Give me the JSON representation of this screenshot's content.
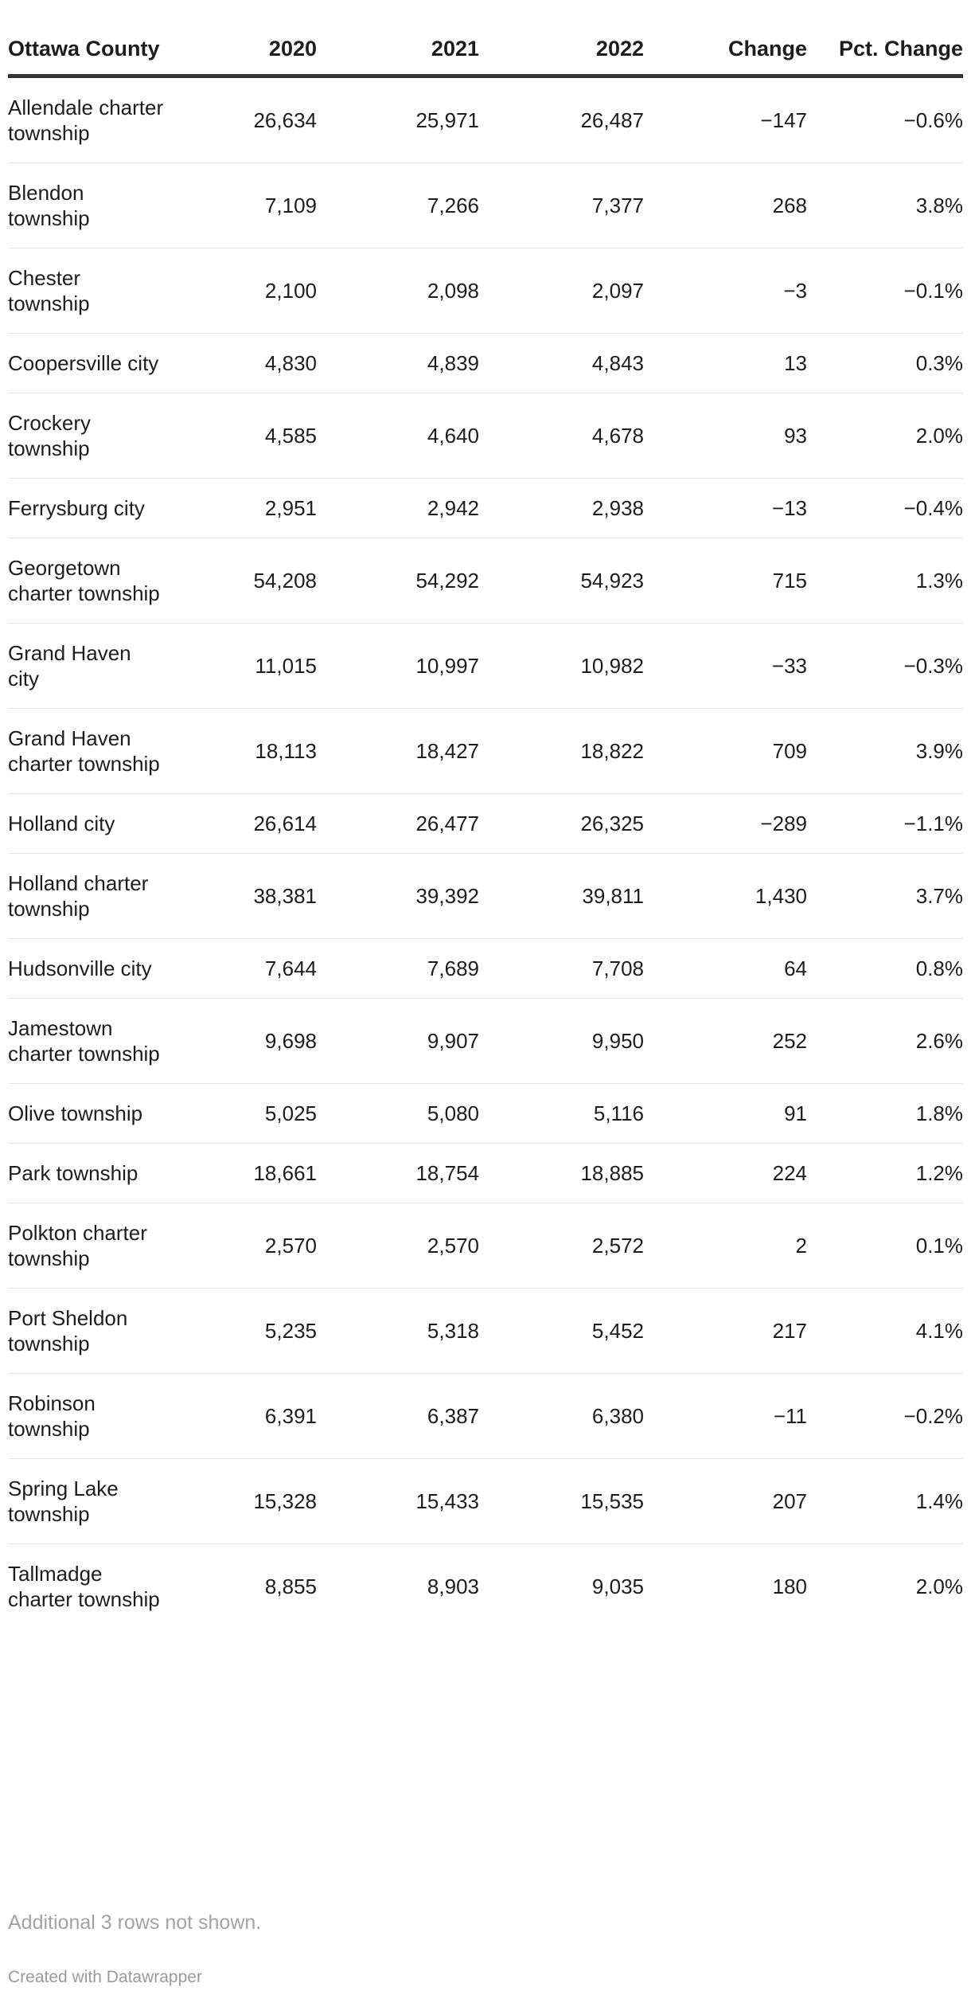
{
  "table": {
    "headers": [
      "Ottawa County",
      "2020",
      "2021",
      "2022",
      "Change",
      "Pct. Change"
    ],
    "rows": [
      [
        "Allendale charter township",
        "26,634",
        "25,971",
        "26,487",
        "−147",
        "−0.6%"
      ],
      [
        "Blendon township",
        "7,109",
        "7,266",
        "7,377",
        "268",
        "3.8%"
      ],
      [
        "Chester township",
        "2,100",
        "2,098",
        "2,097",
        "−3",
        "−0.1%"
      ],
      [
        "Coopersville city",
        "4,830",
        "4,839",
        "4,843",
        "13",
        "0.3%"
      ],
      [
        "Crockery township",
        "4,585",
        "4,640",
        "4,678",
        "93",
        "2.0%"
      ],
      [
        "Ferrysburg city",
        "2,951",
        "2,942",
        "2,938",
        "−13",
        "−0.4%"
      ],
      [
        "Georgetown charter township",
        "54,208",
        "54,292",
        "54,923",
        "715",
        "1.3%"
      ],
      [
        "Grand Haven city",
        "11,015",
        "10,997",
        "10,982",
        "−33",
        "−0.3%"
      ],
      [
        "Grand Haven charter township",
        "18,113",
        "18,427",
        "18,822",
        "709",
        "3.9%"
      ],
      [
        "Holland city",
        "26,614",
        "26,477",
        "26,325",
        "−289",
        "−1.1%"
      ],
      [
        "Holland charter township",
        "38,381",
        "39,392",
        "39,811",
        "1,430",
        "3.7%"
      ],
      [
        "Hudsonville city",
        "7,644",
        "7,689",
        "7,708",
        "64",
        "0.8%"
      ],
      [
        "Jamestown charter township",
        "9,698",
        "9,907",
        "9,950",
        "252",
        "2.6%"
      ],
      [
        "Olive township",
        "5,025",
        "5,080",
        "5,116",
        "91",
        "1.8%"
      ],
      [
        "Park township",
        "18,661",
        "18,754",
        "18,885",
        "224",
        "1.2%"
      ],
      [
        "Polkton charter township",
        "2,570",
        "2,570",
        "2,572",
        "2",
        "0.1%"
      ],
      [
        "Port Sheldon township",
        "5,235",
        "5,318",
        "5,452",
        "217",
        "4.1%"
      ],
      [
        "Robinson township",
        "6,391",
        "6,387",
        "6,380",
        "−11",
        "−0.2%"
      ],
      [
        "Spring Lake township",
        "15,328",
        "15,433",
        "15,535",
        "207",
        "1.4%"
      ],
      [
        "Tallmadge charter township",
        "8,855",
        "8,903",
        "9,035",
        "180",
        "2.0%"
      ]
    ]
  },
  "footer": {
    "note": "Additional 3 rows not shown.",
    "credit": "Created with Datawrapper"
  }
}
